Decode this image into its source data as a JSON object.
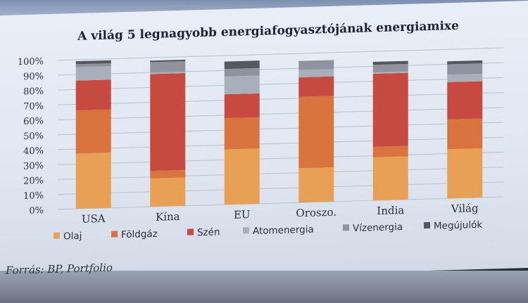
{
  "chart_data": {
    "type": "bar",
    "stacked": true,
    "title": "A világ 5 legnagyobb energiafogyasztójának energiamixe",
    "categories": [
      "USA",
      "Kína",
      "EU",
      "Oroszo.",
      "India",
      "Világ"
    ],
    "y_ticks": [
      "0%",
      "10%",
      "20%",
      "30%",
      "40%",
      "50%",
      "60%",
      "70%",
      "80%",
      "90%",
      "100%"
    ],
    "ylim": [
      0,
      100
    ],
    "grid": true,
    "legend_position": "bottom",
    "series": [
      {
        "name": "Olaj",
        "color": "#e8a055",
        "values": [
          37,
          19,
          37,
          23,
          29,
          33
        ]
      },
      {
        "name": "Földgáz",
        "color": "#d9743f",
        "values": [
          29,
          5,
          21,
          48,
          7,
          20
        ]
      },
      {
        "name": "Szén",
        "color": "#c64a3f",
        "values": [
          20,
          65,
          16,
          13,
          49,
          25
        ]
      },
      {
        "name": "Atomenergia",
        "color": "#a9aebb",
        "values": [
          9,
          1,
          12,
          5,
          1,
          5
        ]
      },
      {
        "name": "Vízenergia",
        "color": "#8f939e",
        "values": [
          2,
          7,
          5,
          6,
          5,
          7
        ]
      },
      {
        "name": "Megújulók",
        "color": "#55565e",
        "values": [
          2,
          1,
          5,
          0,
          2,
          2
        ]
      }
    ],
    "source": "Forrás: BP, Portfolio"
  }
}
